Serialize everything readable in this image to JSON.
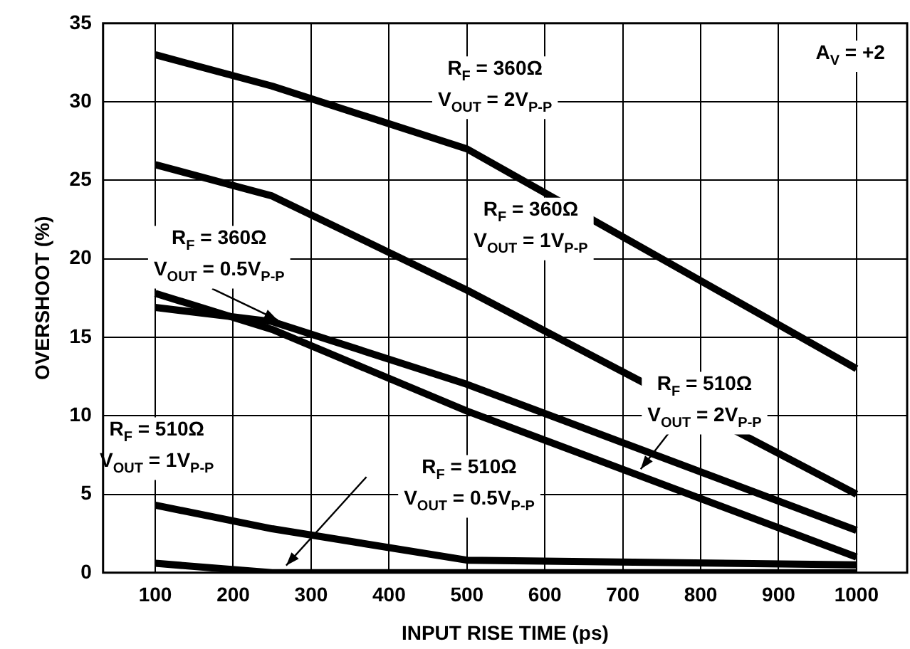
{
  "chart_data": {
    "type": "line",
    "xlabel": "INPUT RISE TIME (ps)",
    "ylabel": "OVERSHOOT (%)",
    "x": [
      100,
      250,
      500,
      1000
    ],
    "series": [
      {
        "name": "R$_{F}$ = 360Ω\nV$_{OUT}$ = 2V$_{P-P}$",
        "color": "#000000",
        "values": [
          33,
          31,
          27,
          13
        ]
      },
      {
        "name": "R$_{F}$ = 360Ω\nV$_{OUT}$ = 1V$_{P-P}$",
        "color": "#000000",
        "values": [
          26,
          24,
          18,
          5
        ]
      },
      {
        "name": "R$_{F}$ = 360Ω\nV$_{OUT}$ = 0.5V$_{P-P}$",
        "color": "#000000",
        "values": [
          16.9,
          16,
          12,
          2.7
        ]
      },
      {
        "name": "R$_{F}$ = 510Ω\nV$_{OUT}$ = 2V$_{P-P}$",
        "color": "#000000",
        "values": [
          17.8,
          15.5,
          10.3,
          1
        ]
      },
      {
        "name": "R$_{F}$ = 510Ω\nV$_{OUT}$ = 1V$_{P-P}$",
        "color": "#000000",
        "values": [
          4.3,
          2.8,
          0.8,
          0.5
        ]
      },
      {
        "name": "R$_{F}$ = 510Ω\nV$_{OUT}$ = 0.5V$_{P-P}$",
        "color": "#000000",
        "values": [
          0.6,
          0,
          0,
          0
        ]
      }
    ],
    "annotations": [
      "A$_{V}$ = +2"
    ],
    "xlim": [
      33,
      1065
    ],
    "xticks": [
      100,
      200,
      300,
      400,
      500,
      600,
      700,
      800,
      900,
      1000
    ],
    "ylim": [
      0,
      35
    ],
    "yticks": [
      0,
      5,
      10,
      15,
      20,
      25,
      30,
      35
    ],
    "grid": true,
    "legend": false,
    "marker": "none",
    "line_style": "solid"
  }
}
